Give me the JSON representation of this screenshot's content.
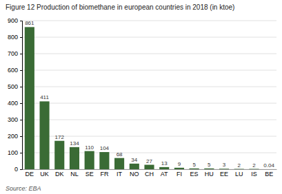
{
  "chart_data": {
    "type": "bar",
    "title": "Figure 12 Production of biomethane in european countries in 2018 (in ktoe)",
    "source": "Source: EBA",
    "categories": [
      "DE",
      "UK",
      "DK",
      "NL",
      "SE",
      "FR",
      "IT",
      "NO",
      "CH",
      "AT",
      "FI",
      "ES",
      "HU",
      "EE",
      "LU",
      "IS",
      "BE"
    ],
    "values": [
      861,
      411,
      172,
      134,
      110,
      104,
      68,
      34,
      27,
      13,
      9,
      5,
      5,
      3,
      2,
      2,
      0.04
    ],
    "color": "#3a6b35",
    "ylim": [
      0,
      900
    ],
    "yticks": [
      0,
      100,
      200,
      300,
      400,
      500,
      600,
      700,
      800,
      900
    ],
    "grid": true,
    "data_labels": true
  }
}
